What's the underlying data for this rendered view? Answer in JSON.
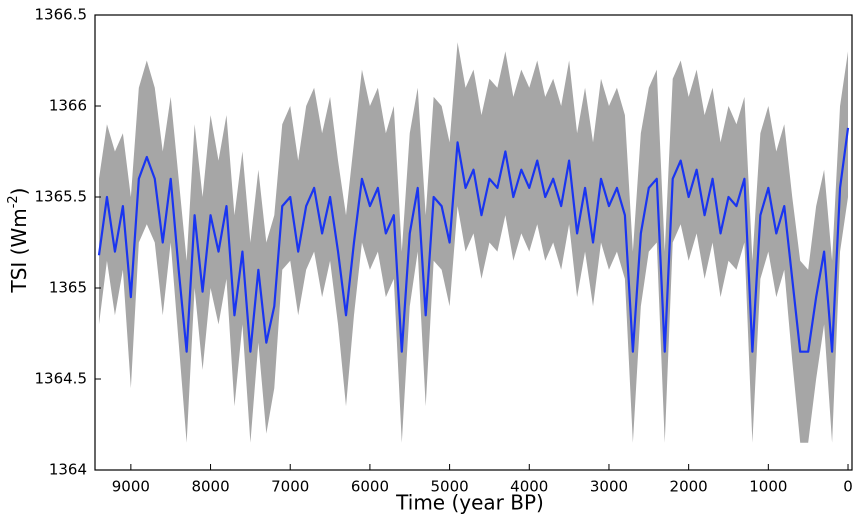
{
  "chart_data": {
    "type": "line",
    "x_label": "Time (year BP)",
    "y_label": "TSI (Wm",
    "y_label_superscript": "-2",
    "y_label_suffix": ")",
    "x": [
      9400,
      9300,
      9200,
      9100,
      9000,
      8900,
      8800,
      8700,
      8600,
      8500,
      8400,
      8300,
      8200,
      8100,
      8000,
      7900,
      7800,
      7700,
      7600,
      7500,
      7400,
      7300,
      7200,
      7100,
      7000,
      6900,
      6800,
      6700,
      6600,
      6500,
      6400,
      6300,
      6200,
      6100,
      6000,
      5900,
      5800,
      5700,
      5600,
      5500,
      5400,
      5300,
      5200,
      5100,
      5000,
      4900,
      4800,
      4700,
      4600,
      4500,
      4400,
      4300,
      4200,
      4100,
      4000,
      3900,
      3800,
      3700,
      3600,
      3500,
      3400,
      3300,
      3200,
      3100,
      3000,
      2900,
      2800,
      2700,
      2600,
      2500,
      2400,
      2300,
      2200,
      2100,
      2000,
      1900,
      1800,
      1700,
      1600,
      1500,
      1400,
      1300,
      1200,
      1100,
      1000,
      900,
      800,
      700,
      600,
      500,
      400,
      300,
      200,
      100,
      0
    ],
    "band": {
      "color": "#a6a6a6",
      "upper": [
        1365.6,
        1365.9,
        1365.75,
        1365.85,
        1365.5,
        1366.1,
        1366.25,
        1366.1,
        1365.75,
        1366.05,
        1365.6,
        1365.15,
        1365.9,
        1365.5,
        1365.95,
        1365.7,
        1365.95,
        1365.4,
        1365.75,
        1365.25,
        1365.65,
        1365.25,
        1365.4,
        1365.9,
        1366.0,
        1365.7,
        1366.0,
        1366.1,
        1365.85,
        1366.05,
        1365.7,
        1365.4,
        1365.8,
        1366.2,
        1366.0,
        1366.1,
        1365.85,
        1366.0,
        1365.2,
        1365.85,
        1366.1,
        1365.4,
        1366.05,
        1366.0,
        1365.8,
        1366.35,
        1366.1,
        1366.2,
        1365.95,
        1366.15,
        1366.1,
        1366.3,
        1366.05,
        1366.2,
        1366.1,
        1366.25,
        1366.05,
        1366.15,
        1366.0,
        1366.25,
        1365.85,
        1366.1,
        1365.8,
        1366.15,
        1366.0,
        1366.1,
        1365.95,
        1365.2,
        1365.85,
        1366.1,
        1366.2,
        1365.2,
        1366.15,
        1366.25,
        1366.05,
        1366.2,
        1365.95,
        1366.1,
        1365.8,
        1366.0,
        1365.9,
        1366.05,
        1365.15,
        1365.85,
        1366.0,
        1365.75,
        1365.9,
        1365.5,
        1365.15,
        1365.1,
        1365.45,
        1365.65,
        1365.15,
        1366.0,
        1366.3
      ],
      "lower": [
        1364.8,
        1365.15,
        1364.85,
        1365.1,
        1364.45,
        1365.25,
        1365.35,
        1365.25,
        1364.85,
        1365.25,
        1364.7,
        1364.15,
        1365.0,
        1364.55,
        1365.0,
        1364.8,
        1365.05,
        1364.35,
        1364.8,
        1364.15,
        1364.7,
        1364.2,
        1364.45,
        1365.1,
        1365.15,
        1364.85,
        1365.1,
        1365.2,
        1364.95,
        1365.15,
        1364.8,
        1364.35,
        1364.85,
        1365.25,
        1365.1,
        1365.2,
        1364.95,
        1365.05,
        1364.15,
        1364.9,
        1365.2,
        1364.35,
        1365.15,
        1365.1,
        1364.9,
        1365.45,
        1365.2,
        1365.3,
        1365.05,
        1365.25,
        1365.2,
        1365.4,
        1365.15,
        1365.3,
        1365.2,
        1365.35,
        1365.15,
        1365.25,
        1365.1,
        1365.35,
        1364.95,
        1365.2,
        1364.9,
        1365.25,
        1365.1,
        1365.2,
        1365.05,
        1364.15,
        1364.9,
        1365.2,
        1365.25,
        1364.15,
        1365.25,
        1365.35,
        1365.15,
        1365.3,
        1365.05,
        1365.25,
        1364.95,
        1365.15,
        1365.1,
        1365.25,
        1364.15,
        1365.05,
        1365.2,
        1364.95,
        1365.1,
        1364.6,
        1364.15,
        1364.15,
        1364.5,
        1364.8,
        1364.15,
        1365.2,
        1365.5
      ]
    },
    "series": [
      {
        "color": "#1a35f0",
        "values": [
          1365.18,
          1365.5,
          1365.2,
          1365.45,
          1364.95,
          1365.6,
          1365.72,
          1365.6,
          1365.25,
          1365.6,
          1365.1,
          1364.65,
          1365.4,
          1364.98,
          1365.4,
          1365.2,
          1365.45,
          1364.85,
          1365.2,
          1364.65,
          1365.1,
          1364.7,
          1364.9,
          1365.45,
          1365.5,
          1365.2,
          1365.45,
          1365.55,
          1365.3,
          1365.5,
          1365.2,
          1364.85,
          1365.25,
          1365.6,
          1365.45,
          1365.55,
          1365.3,
          1365.4,
          1364.65,
          1365.3,
          1365.55,
          1364.85,
          1365.5,
          1365.45,
          1365.25,
          1365.8,
          1365.55,
          1365.65,
          1365.4,
          1365.6,
          1365.55,
          1365.75,
          1365.5,
          1365.65,
          1365.55,
          1365.7,
          1365.5,
          1365.6,
          1365.45,
          1365.7,
          1365.3,
          1365.55,
          1365.25,
          1365.6,
          1365.45,
          1365.55,
          1365.4,
          1364.65,
          1365.3,
          1365.55,
          1365.6,
          1364.65,
          1365.6,
          1365.7,
          1365.5,
          1365.65,
          1365.4,
          1365.6,
          1365.3,
          1365.5,
          1365.45,
          1365.6,
          1364.65,
          1365.4,
          1365.55,
          1365.3,
          1365.45,
          1365.05,
          1364.65,
          1364.65,
          1364.95,
          1365.2,
          1364.65,
          1365.55,
          1365.88
        ]
      }
    ],
    "xlim": [
      9450,
      -50
    ],
    "xticks": [
      9000,
      8000,
      7000,
      6000,
      5000,
      4000,
      3000,
      2000,
      1000,
      0
    ],
    "ylim": [
      1364,
      1366.5
    ],
    "yticks": [
      1364,
      1364.5,
      1365,
      1365.5,
      1366,
      1366.5
    ]
  }
}
